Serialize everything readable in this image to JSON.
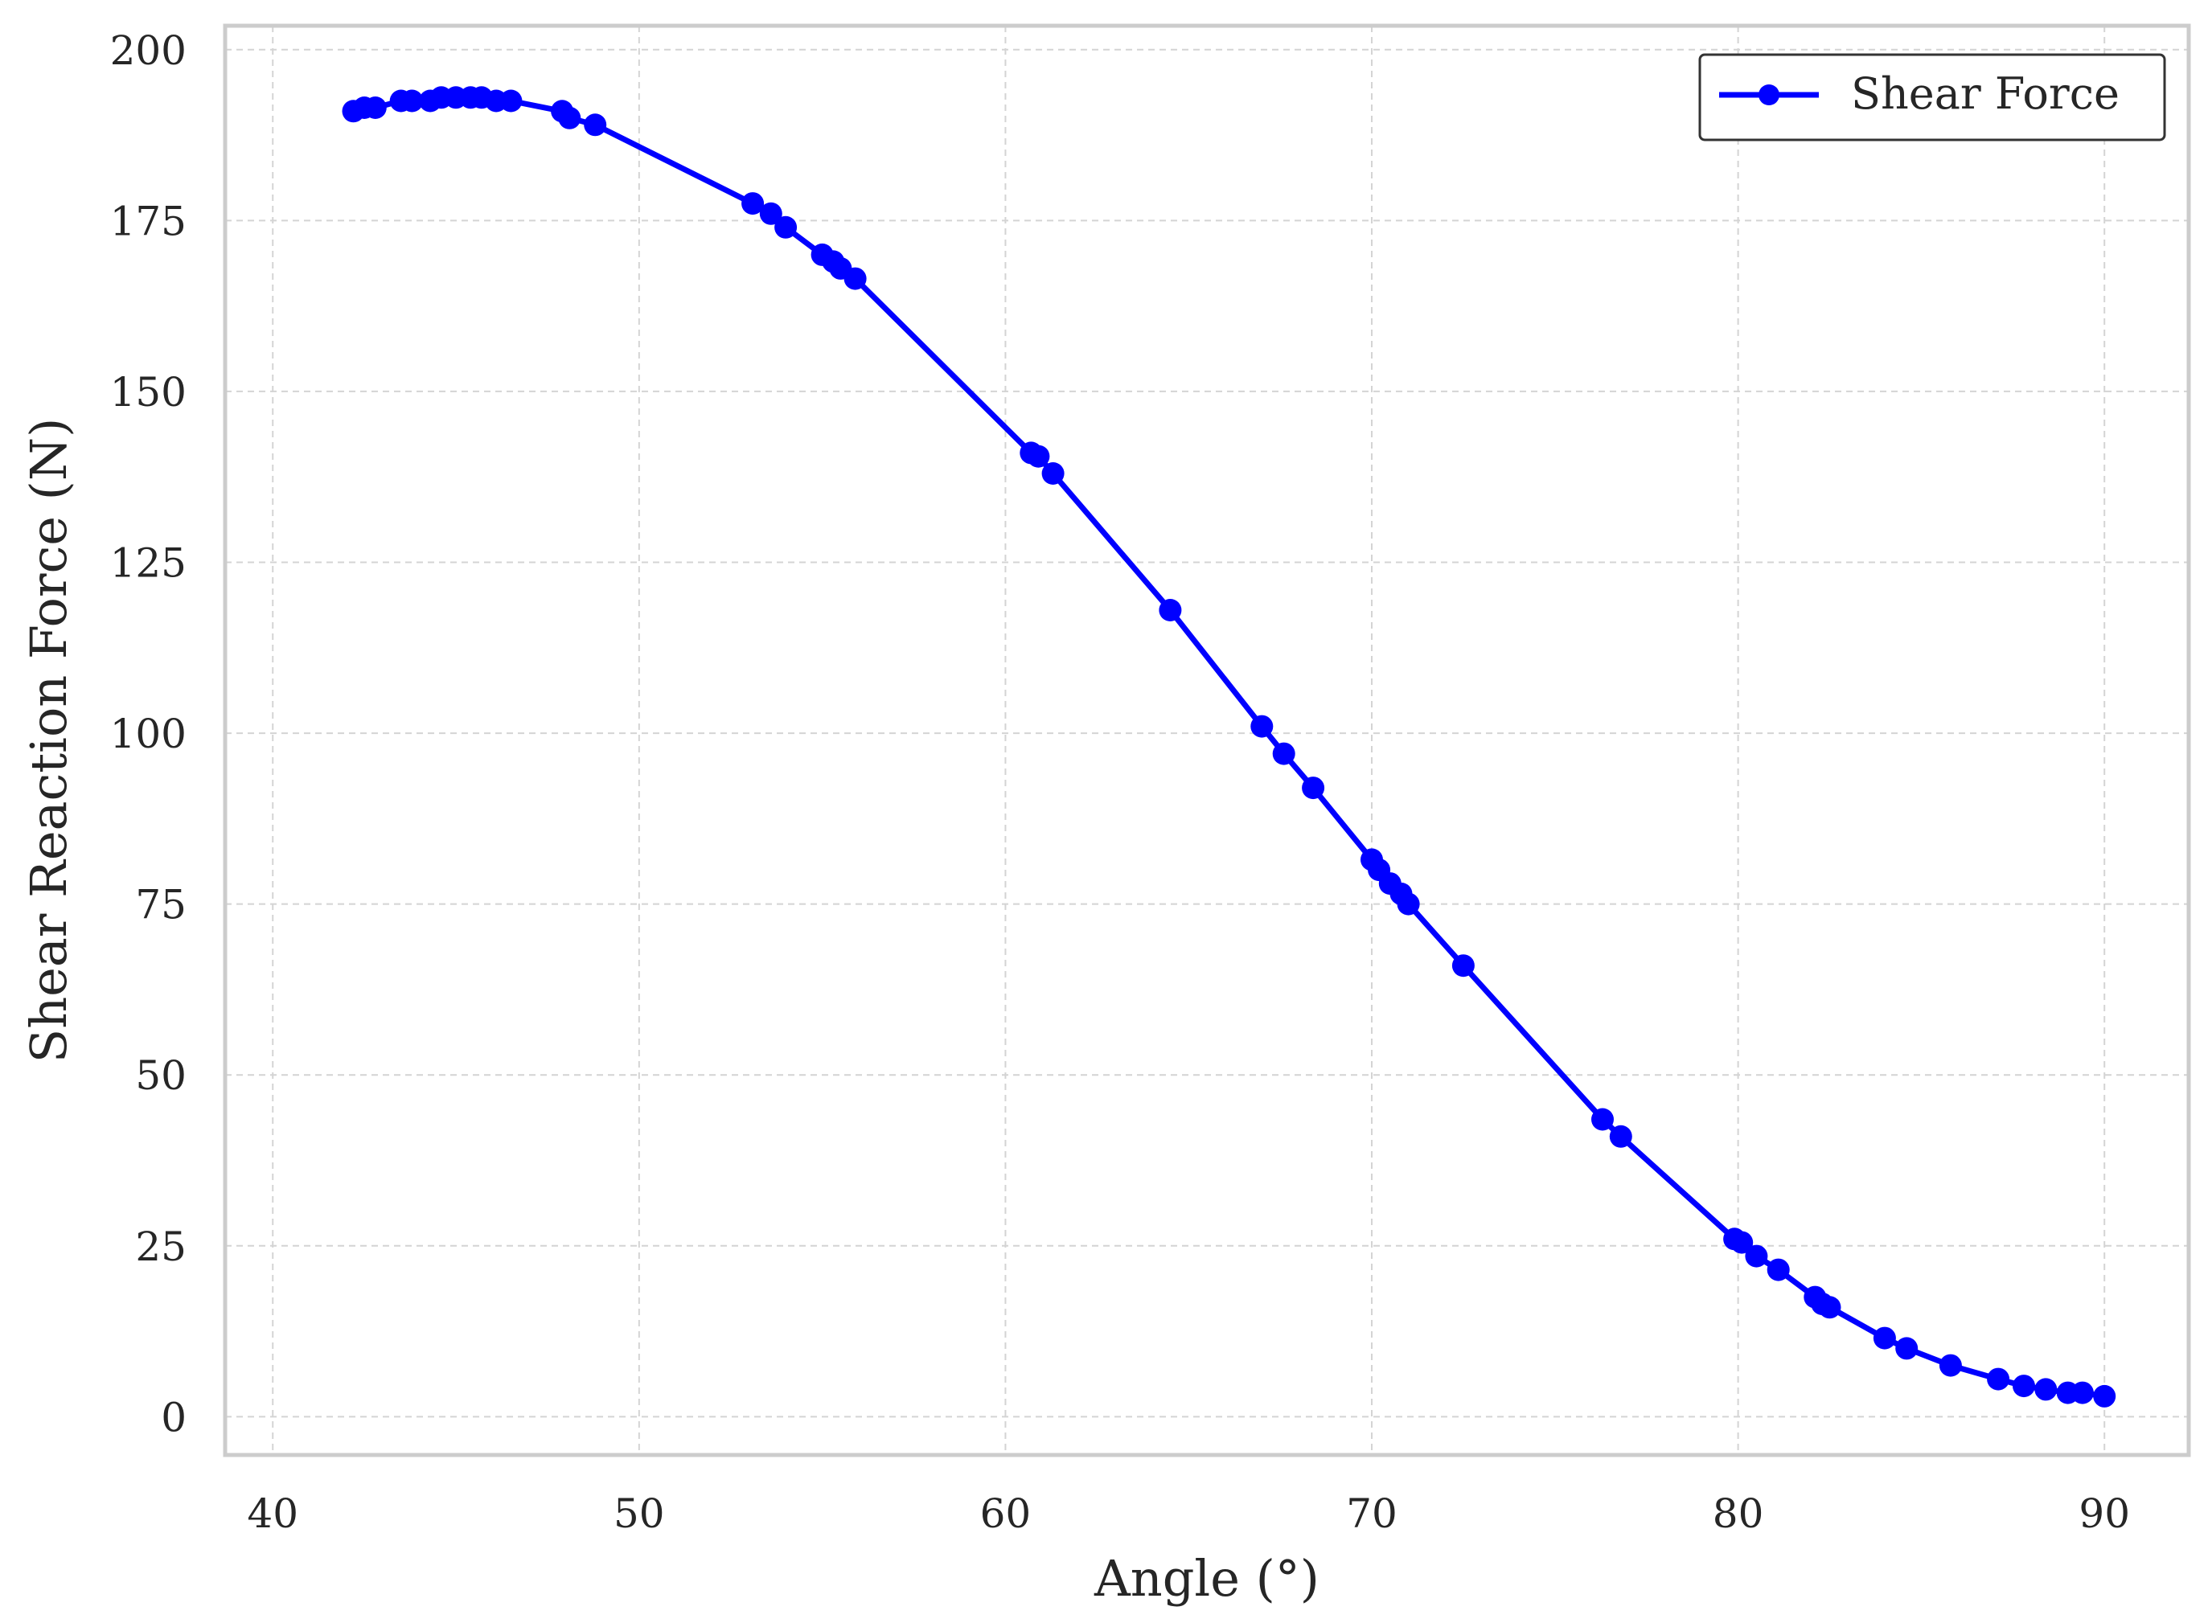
{
  "chart_data": {
    "type": "line",
    "title": "",
    "xlabel": "Angle (°)",
    "ylabel": "Shear Reaction Force (N)",
    "xlim": [
      38.7,
      92.3
    ],
    "ylim": [
      -5.6,
      203.5
    ],
    "xticks": [
      "40",
      "50",
      "60",
      "70",
      "80",
      "90"
    ],
    "yticks": [
      "0",
      "25",
      "50",
      "75",
      "100",
      "125",
      "150",
      "175",
      "200"
    ],
    "grid": true,
    "legend_position": "top-right",
    "series": [
      {
        "name": "Shear Force",
        "color": "#0000ff",
        "marker": "circle",
        "x": [
          42.2,
          42.5,
          42.8,
          43.5,
          43.8,
          44.3,
          44.6,
          45.0,
          45.4,
          45.7,
          46.1,
          46.5,
          47.9,
          48.1,
          48.8,
          53.1,
          53.6,
          54.0,
          55.0,
          55.3,
          55.5,
          55.9,
          60.7,
          60.9,
          61.3,
          64.5,
          67.0,
          67.6,
          68.4,
          70.0,
          70.2,
          70.5,
          70.8,
          71.0,
          72.5,
          76.3,
          76.8,
          79.9,
          80.1,
          80.5,
          81.1,
          82.1,
          82.3,
          82.5,
          84.0,
          84.6,
          85.8,
          87.1,
          87.8,
          88.4,
          89.0,
          89.4,
          90.0
        ],
        "y": [
          191.0,
          191.5,
          191.5,
          192.5,
          192.5,
          192.5,
          193.0,
          193.0,
          193.0,
          193.0,
          192.5,
          192.5,
          191.0,
          190.0,
          189.0,
          177.5,
          176.0,
          174.0,
          170.0,
          169.0,
          168.0,
          166.5,
          141.0,
          140.5,
          138.0,
          118.0,
          101.0,
          97.0,
          92.0,
          81.5,
          80.0,
          78.0,
          76.5,
          75.0,
          66.0,
          43.5,
          41.0,
          26.0,
          25.5,
          23.5,
          21.5,
          17.5,
          16.5,
          16.0,
          11.5,
          10.0,
          7.5,
          5.5,
          4.5,
          4.0,
          3.5,
          3.5,
          3.0
        ]
      }
    ]
  }
}
